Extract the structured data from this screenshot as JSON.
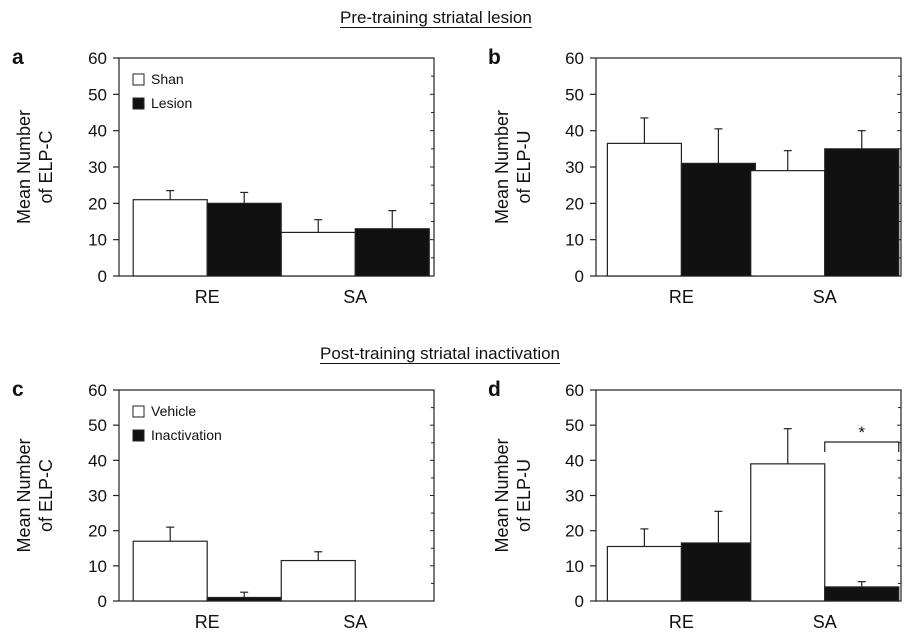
{
  "sections": [
    {
      "title": "Pre-training striatal lesion"
    },
    {
      "title": "Post-training striatal inactivation"
    }
  ],
  "chart_data": [
    {
      "type": "bar",
      "panel": "a",
      "section": 0,
      "title": "",
      "xlabel": "",
      "ylabel": [
        "Mean Number",
        "of ELP-C"
      ],
      "ylim": [
        0,
        60
      ],
      "yticks": [
        0,
        10,
        20,
        30,
        40,
        50,
        60
      ],
      "categories": [
        "RE",
        "SA"
      ],
      "legend": "top-left",
      "series": [
        {
          "name": "Shan",
          "color": "#ffffff",
          "values": [
            21,
            12
          ],
          "errors": [
            2.5,
            3.5
          ]
        },
        {
          "name": "Lesion",
          "color": "#111111",
          "values": [
            20,
            13
          ],
          "errors": [
            3,
            5
          ]
        }
      ],
      "annotations": []
    },
    {
      "type": "bar",
      "panel": "b",
      "section": 0,
      "title": "",
      "xlabel": "",
      "ylabel": [
        "Mean Number",
        "of ELP-U"
      ],
      "ylim": [
        0,
        60
      ],
      "yticks": [
        0,
        10,
        20,
        30,
        40,
        50,
        60
      ],
      "categories": [
        "RE",
        "SA"
      ],
      "legend": "none",
      "series": [
        {
          "name": "",
          "color": "#ffffff",
          "values": [
            36.5,
            29
          ],
          "errors": [
            7,
            5.5
          ]
        },
        {
          "name": "",
          "color": "#111111",
          "values": [
            31,
            35
          ],
          "errors": [
            9.5,
            5
          ]
        }
      ],
      "annotations": []
    },
    {
      "type": "bar",
      "panel": "c",
      "section": 1,
      "title": "",
      "xlabel": "",
      "ylabel": [
        "Mean Number",
        "of ELP-C"
      ],
      "ylim": [
        0,
        60
      ],
      "yticks": [
        0,
        10,
        20,
        30,
        40,
        50,
        60
      ],
      "categories": [
        "RE",
        "SA"
      ],
      "legend": "top-left",
      "series": [
        {
          "name": "Vehicle",
          "color": "#ffffff",
          "values": [
            17,
            11.5
          ],
          "errors": [
            4,
            2.5
          ]
        },
        {
          "name": "Inactivation",
          "color": "#111111",
          "values": [
            1,
            0
          ],
          "errors": [
            1.5,
            0
          ]
        }
      ],
      "annotations": []
    },
    {
      "type": "bar",
      "panel": "d",
      "section": 1,
      "title": "",
      "xlabel": "",
      "ylabel": [
        "Mean Number",
        "of ELP-U"
      ],
      "ylim": [
        0,
        60
      ],
      "yticks": [
        0,
        10,
        20,
        30,
        40,
        50,
        60
      ],
      "categories": [
        "RE",
        "SA"
      ],
      "legend": "none",
      "series": [
        {
          "name": "",
          "color": "#ffffff",
          "values": [
            15.5,
            39
          ],
          "errors": [
            5,
            10
          ]
        },
        {
          "name": "",
          "color": "#111111",
          "values": [
            16.5,
            4
          ],
          "errors": [
            9,
            1.5
          ]
        }
      ],
      "annotations": [
        {
          "text": "*",
          "category": 1
        }
      ]
    }
  ]
}
